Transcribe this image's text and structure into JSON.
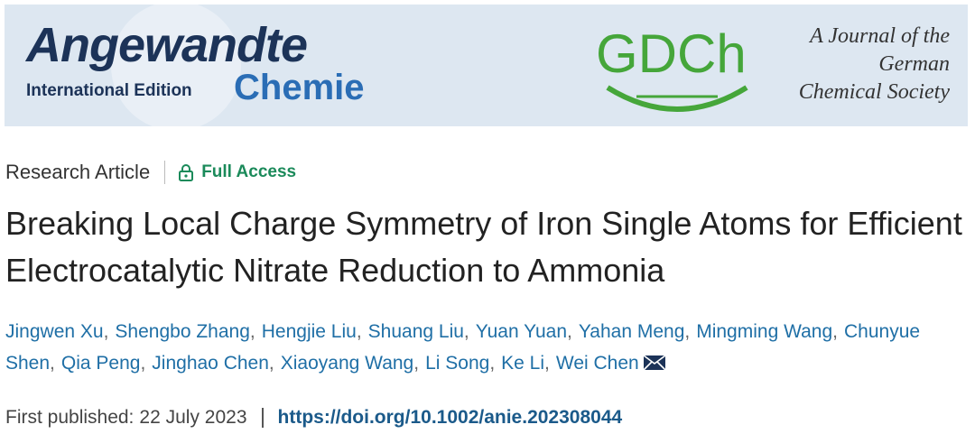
{
  "banner": {
    "journal_name": "Angewandte",
    "journal_subname": "Chemie",
    "edition": "International Edition",
    "society_logo": "GDCh",
    "society_lines": [
      "A Journal of the",
      "German",
      "Chemical Society"
    ]
  },
  "article": {
    "type": "Research Article",
    "access": "Full Access",
    "title": "Breaking Local Charge Symmetry of Iron Single Atoms for Efficient Electrocatalytic Nitrate Reduction to Ammonia",
    "authors": [
      "Jingwen Xu",
      "Shengbo Zhang",
      "Hengjie Liu",
      "Shuang Liu",
      "Yuan Yuan",
      "Yahan Meng",
      "Mingming Wang",
      "Chunyue Shen",
      "Qia Peng",
      "Jinghao Chen",
      "Xiaoyang Wang",
      "Li Song",
      "Ke Li",
      "Wei Chen"
    ],
    "published_label": "First published:",
    "published_date": "22 July 2023",
    "doi": "https://doi.org/10.1002/anie.202308044"
  }
}
